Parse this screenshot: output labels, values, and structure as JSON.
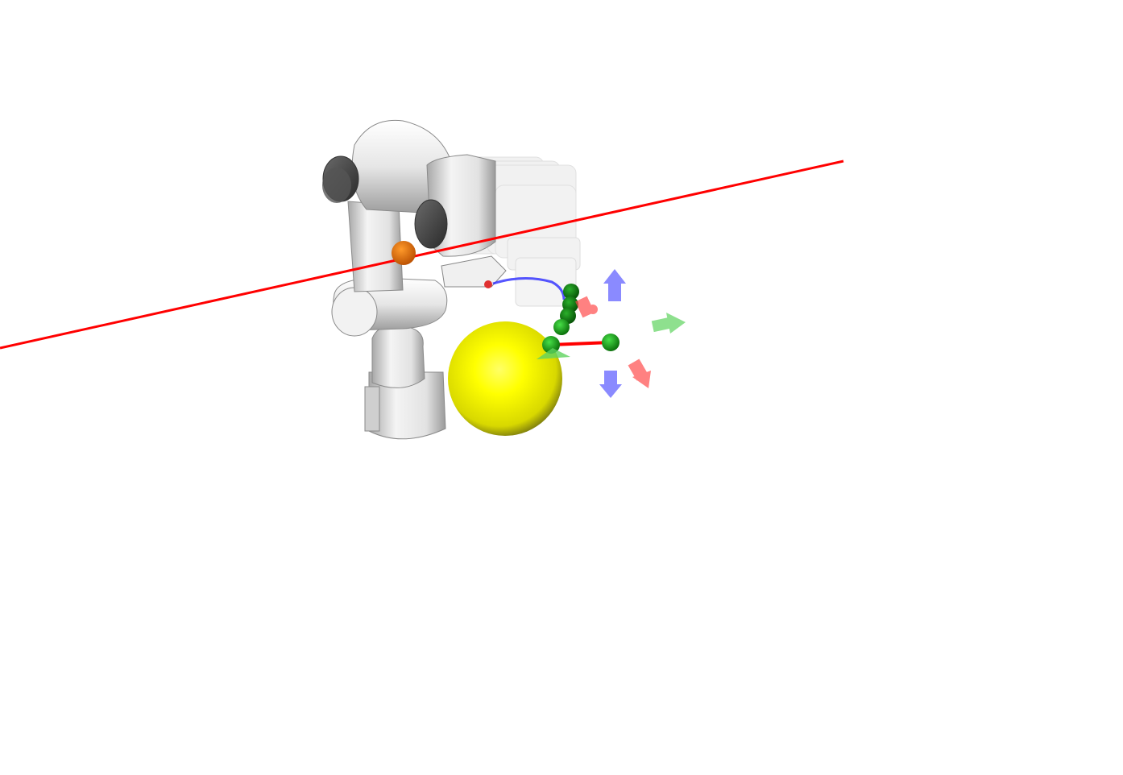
{
  "viewer": {
    "background": "#ffffff",
    "objects": [
      {
        "name": "robot-arm",
        "kind": "franka-style 7-dof manipulator",
        "color": "#e8e8e8"
      },
      {
        "name": "ghost-trajectory",
        "kind": "semi-transparent end-effector sweep",
        "color": "#d9d9d9"
      },
      {
        "name": "target-sphere",
        "kind": "sphere",
        "color": "#ffff00"
      },
      {
        "name": "reference-line",
        "kind": "line",
        "color": "#ff0000"
      },
      {
        "name": "joint-marker",
        "kind": "sphere",
        "color": "#e06a00"
      },
      {
        "name": "waypoints",
        "kind": "sphere chain",
        "color": "#0f8f0f"
      },
      {
        "name": "goal-segment",
        "kind": "line with sphere endpoints",
        "color": "#ff0000"
      }
    ],
    "gizmo_colors": {
      "x": "#ff4d4d",
      "y": "#5fd35f",
      "z": "#5a5aff"
    }
  }
}
